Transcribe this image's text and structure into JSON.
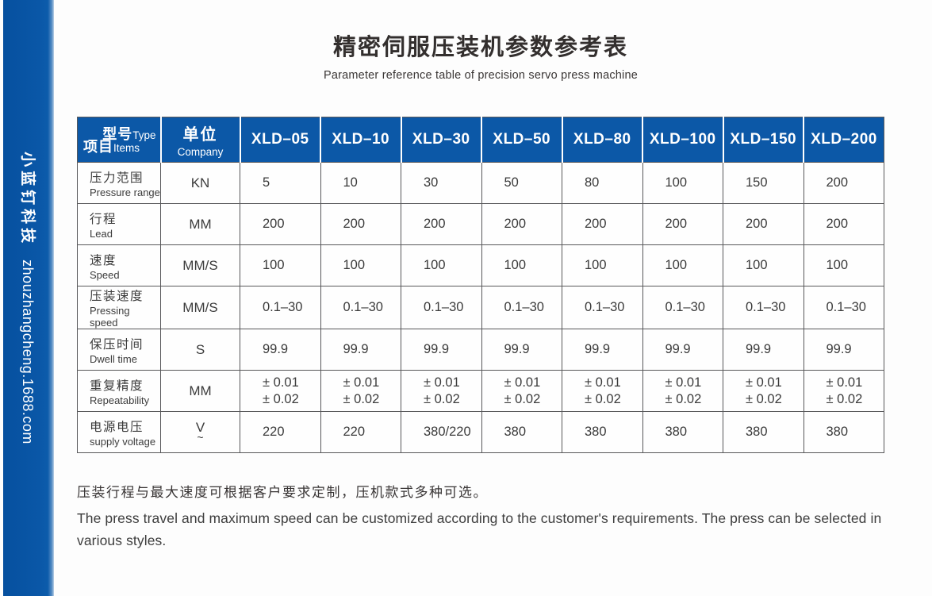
{
  "page": {
    "title_cn": "精密伺服压装机参数参考表",
    "title_en": "Parameter reference table of precision servo press machine"
  },
  "sidebar": {
    "brand_cn": "小蓝钉科技",
    "brand_url": "zhouzhangcheng.1688.com"
  },
  "table": {
    "corner": {
      "top_cn": "型号",
      "top_en": "Type",
      "bottom_cn": "项目",
      "bottom_en": "Items"
    },
    "unit_header": {
      "cn": "单位",
      "en": "Company"
    },
    "models": [
      "XLD–05",
      "XLD–10",
      "XLD–30",
      "XLD–50",
      "XLD–80",
      "XLD–100",
      "XLD–150",
      "XLD–200"
    ],
    "rows": [
      {
        "label_cn": "压力范围",
        "label_en": "Pressure range",
        "unit": "KN",
        "values": [
          "5",
          "10",
          "30",
          "50",
          "80",
          "100",
          "150",
          "200"
        ]
      },
      {
        "label_cn": "行程",
        "label_en": "Lead",
        "unit": "MM",
        "values": [
          "200",
          "200",
          "200",
          "200",
          "200",
          "200",
          "200",
          "200"
        ]
      },
      {
        "label_cn": "速度",
        "label_en": "Speed",
        "unit": "MM/S",
        "values": [
          "100",
          "100",
          "100",
          "100",
          "100",
          "100",
          "100",
          "100"
        ]
      },
      {
        "label_cn": "压装速度",
        "label_en": "Pressing speed",
        "unit": "MM/S",
        "values": [
          "0.1–30",
          "0.1–30",
          "0.1–30",
          "0.1–30",
          "0.1–30",
          "0.1–30",
          "0.1–30",
          "0.1–30"
        ]
      },
      {
        "label_cn": "保压时间",
        "label_en": "Dwell time",
        "unit": "S",
        "values": [
          "99.9",
          "99.9",
          "99.9",
          "99.9",
          "99.9",
          "99.9",
          "99.9",
          "99.9"
        ]
      },
      {
        "label_cn": "重复精度",
        "label_en": "Repeatability",
        "unit": "MM",
        "values": [
          "± 0.01\n± 0.02",
          "± 0.01\n± 0.02",
          "± 0.01\n± 0.02",
          "± 0.01\n± 0.02",
          "± 0.01\n± 0.02",
          "± 0.01\n± 0.02",
          "± 0.01\n± 0.02",
          "± 0.01\n± 0.02"
        ]
      },
      {
        "label_cn": "电源电压",
        "label_en": "supply voltage",
        "unit": "V\n~",
        "values": [
          "220",
          "220",
          "380/220",
          "380",
          "380",
          "380",
          "380",
          "380"
        ]
      }
    ]
  },
  "footer": {
    "note_cn": "压装行程与最大速度可根据客户要求定制，压机款式多种可选。",
    "note_en": "The press travel and maximum speed can be customized according to the customer's requirements. The press can be selected in various styles."
  },
  "colors": {
    "brand_blue": "#0c58a7",
    "border_gray": "#58585a",
    "title_dark": "#332f2e"
  }
}
